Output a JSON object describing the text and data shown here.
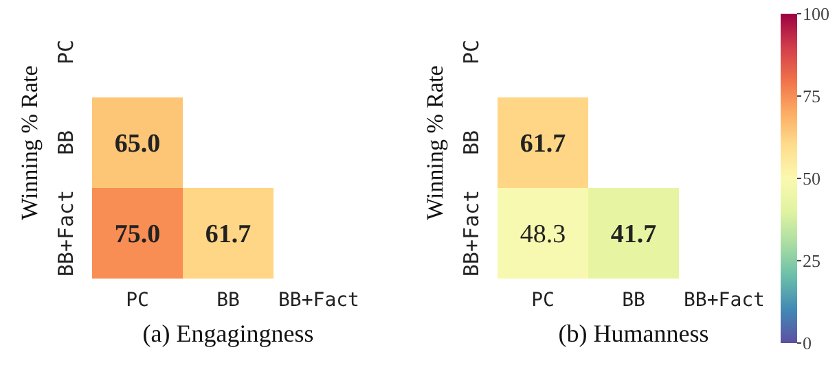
{
  "chart_data": [
    {
      "type": "heatmap",
      "title": "(a) Engagingness",
      "ylabel": "Winning % Rate",
      "categories": [
        "PC",
        "BB",
        "BB+Fact"
      ],
      "y_categories": [
        "PC",
        "BB",
        "BB+Fact"
      ],
      "cells": [
        [
          null,
          null,
          null
        ],
        [
          65.0,
          null,
          null
        ],
        [
          75.0,
          61.7,
          null
        ]
      ],
      "cell_labels": [
        [
          null,
          null,
          null
        ],
        [
          "65.0",
          null,
          null
        ],
        [
          "75.0",
          "61.7",
          null
        ]
      ]
    },
    {
      "type": "heatmap",
      "title": "(b) Humanness",
      "ylabel": "Winning % Rate",
      "categories": [
        "PC",
        "BB",
        "BB+Fact"
      ],
      "y_categories": [
        "PC",
        "BB",
        "BB+Fact"
      ],
      "cells": [
        [
          null,
          null,
          null
        ],
        [
          61.7,
          null,
          null
        ],
        [
          48.3,
          41.7,
          null
        ]
      ],
      "cell_labels": [
        [
          null,
          null,
          null
        ],
        [
          "61.7",
          null,
          null
        ],
        [
          "48.3",
          "41.7",
          null
        ]
      ],
      "clim": [
        0,
        100
      ],
      "cticks": [
        0,
        25,
        50,
        75,
        100
      ]
    }
  ]
}
